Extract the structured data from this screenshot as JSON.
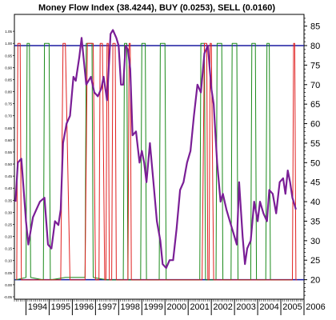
{
  "colors": {
    "background": "#ffffff",
    "mfi": "#7a1e96",
    "buy": "#e02020",
    "sell": "#1a8a1a",
    "threshold": "#1a1aa0",
    "frame": "#000000"
  },
  "chart_data": {
    "type": "line",
    "title": "Money Flow Index (38.4244), BUY (0.0253), SELL (0.0160)",
    "x_range": [
      1993.5,
      2006.0
    ],
    "x_ticks": [
      "1994",
      "1995",
      "1996",
      "1997",
      "1998",
      "1999",
      "2000",
      "2001",
      "2002",
      "2003",
      "2004",
      "2005",
      "2006"
    ],
    "y_right": {
      "range": [
        15,
        88
      ],
      "ticks": [
        "85",
        "80",
        "75",
        "70",
        "65",
        "60",
        "55",
        "50",
        "45",
        "40",
        "35",
        "30",
        "25",
        "20"
      ]
    },
    "y_left": {
      "range": [
        -0.06,
        1.12
      ],
      "ticks": [
        "1.05",
        "1.00",
        "0.95",
        "0.90",
        "0.85",
        "0.80",
        "0.75",
        "0.70",
        "0.65",
        "0.60",
        "0.55",
        "0.50",
        "0.45",
        "0.40",
        "0.35",
        "0.30",
        "0.25",
        "0.20",
        "0.15",
        "0.10",
        "0.05",
        "0.00",
        "-0.05"
      ]
    },
    "threshold_lines": [
      80,
      20
    ],
    "series": [
      {
        "name": "Money Flow Index",
        "axis": "right",
        "x": [
          1993.55,
          1993.65,
          1993.8,
          1994.0,
          1994.1,
          1994.3,
          1994.45,
          1994.6,
          1994.8,
          1994.95,
          1995.1,
          1995.25,
          1995.4,
          1995.5,
          1995.6,
          1995.75,
          1995.9,
          1996.05,
          1996.15,
          1996.3,
          1996.4,
          1996.6,
          1996.8,
          1996.95,
          1997.1,
          1997.25,
          1997.35,
          1997.5,
          1997.65,
          1997.75,
          1997.9,
          1998.0,
          1998.1,
          1998.2,
          1998.3,
          1998.4,
          1998.5,
          1998.6,
          1998.75,
          1998.9,
          1999.0,
          1999.1,
          1999.2,
          1999.35,
          1999.5,
          1999.65,
          1999.8,
          1999.9,
          2000.05,
          2000.2,
          2000.35,
          2000.5,
          2000.65,
          2000.8,
          2000.95,
          2001.1,
          2001.25,
          2001.4,
          2001.55,
          2001.7,
          2001.85,
          2002.0,
          2002.1,
          2002.25,
          2002.4,
          2002.5,
          2002.65,
          2002.8,
          2002.95,
          2003.1,
          2003.2,
          2003.35,
          2003.45,
          2003.55,
          2003.7,
          2003.85,
          2004.0,
          2004.1,
          2004.25,
          2004.4,
          2004.5,
          2004.65,
          2004.8,
          2004.95,
          2005.1,
          2005.2,
          2005.3,
          2005.4,
          2005.5,
          2005.65
        ],
        "values": [
          40,
          50,
          51,
          35,
          29,
          36,
          38,
          40,
          41,
          29,
          28,
          35,
          34,
          38,
          55,
          60,
          62,
          72,
          71,
          77,
          82,
          70,
          72,
          68,
          67,
          69,
          72,
          66,
          83,
          84,
          82,
          80,
          70,
          70,
          80,
          79,
          74,
          57,
          58,
          50,
          53,
          50,
          45,
          55,
          45,
          35,
          30,
          24,
          23,
          25,
          25,
          33,
          43,
          45,
          50,
          53,
          62,
          70,
          68,
          78,
          80,
          69,
          65,
          50,
          40,
          42,
          38,
          35,
          32,
          29,
          45,
          31,
          24,
          28,
          30,
          40,
          35,
          40,
          37,
          35,
          43,
          42,
          37,
          45,
          46,
          42,
          48,
          45,
          41,
          38
        ]
      },
      {
        "name": "BUY",
        "axis": "left",
        "x": [
          1993.6,
          1993.65,
          1993.75,
          1993.8,
          1994.5,
          1995.05,
          1995.5,
          1995.6,
          1995.7,
          1995.9,
          1996.55,
          1996.65,
          1996.9,
          1997.0,
          1997.15,
          1997.2,
          1997.3,
          1997.4,
          1997.45,
          1997.5,
          1997.55,
          1997.6,
          1997.7,
          1997.75,
          1997.85,
          1997.9,
          1998.4,
          1998.45,
          1998.5,
          1998.55,
          1998.9,
          1999.4,
          1999.5,
          1999.9,
          2000.0,
          2000.1,
          2000.5,
          2000.9,
          2001.3,
          2001.5,
          2001.6,
          2001.7,
          2001.8,
          2001.85,
          2001.9,
          2001.95,
          2002.0,
          2002.1,
          2002.15,
          2002.5,
          2003.0,
          2003.5,
          2003.95,
          2004.5,
          2005.0,
          2005.5,
          2005.55,
          2005.6,
          2005.65,
          2005.7
        ],
        "values": [
          0.02,
          1.0,
          1.0,
          0.02,
          0.02,
          0.02,
          0.02,
          1.0,
          1.0,
          0.02,
          0.02,
          1.0,
          1.0,
          0.02,
          0.02,
          1.0,
          1.0,
          0.02,
          0.02,
          1.0,
          1.0,
          0.02,
          0.02,
          1.0,
          1.0,
          0.02,
          0.02,
          1.0,
          1.0,
          0.02,
          0.02,
          0.02,
          0.02,
          0.02,
          0.02,
          0.02,
          0.02,
          0.02,
          0.02,
          0.02,
          0.02,
          1.0,
          1.0,
          0.02,
          0.02,
          1.0,
          1.0,
          0.02,
          0.02,
          0.02,
          0.02,
          0.02,
          0.02,
          0.02,
          0.02,
          0.02,
          1.0,
          1.0,
          0.02,
          0.02
        ]
      },
      {
        "name": "SELL",
        "axis": "left",
        "x": [
          1993.55,
          1994.0,
          1994.05,
          1994.15,
          1994.2,
          1994.75,
          1994.8,
          1995.0,
          1995.05,
          1995.7,
          1996.55,
          1996.6,
          1996.85,
          1996.9,
          1997.5,
          1998.2,
          1998.25,
          1998.35,
          1998.4,
          1998.95,
          1999.0,
          1999.15,
          1999.2,
          1999.75,
          1999.8,
          2000.0,
          2000.05,
          2001.5,
          2001.55,
          2001.7,
          2001.75,
          2002.2,
          2002.25,
          2002.45,
          2002.5,
          2002.85,
          2002.9,
          2003.1,
          2003.15,
          2003.7,
          2003.75,
          2003.9,
          2003.95,
          2004.35,
          2004.4,
          2004.5,
          2004.55,
          2005.5
        ],
        "values": [
          0.02,
          0.03,
          1.0,
          1.0,
          0.03,
          0.02,
          1.0,
          1.0,
          0.02,
          0.03,
          0.03,
          1.0,
          1.0,
          0.03,
          0.02,
          0.02,
          1.0,
          1.0,
          0.02,
          0.02,
          1.0,
          1.0,
          0.02,
          0.02,
          1.0,
          1.0,
          0.02,
          0.02,
          1.0,
          1.0,
          0.02,
          0.02,
          1.0,
          1.0,
          0.02,
          0.02,
          1.0,
          1.0,
          0.02,
          0.02,
          1.0,
          1.0,
          0.02,
          0.02,
          1.0,
          1.0,
          0.02,
          0.02
        ]
      }
    ],
    "grid": false,
    "legend": "none"
  }
}
